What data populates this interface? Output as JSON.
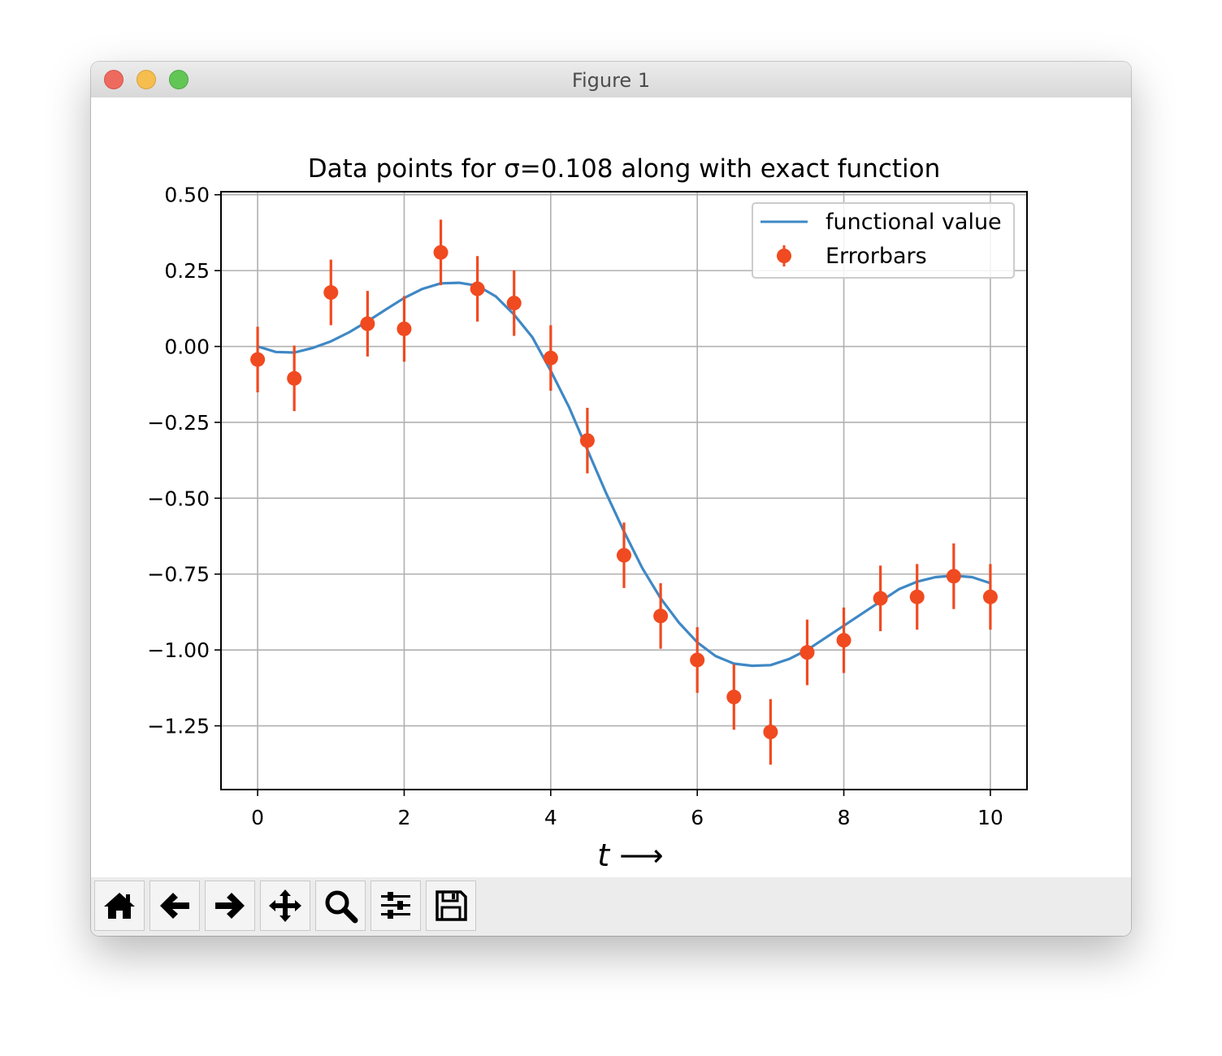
{
  "window": {
    "title": "Figure 1"
  },
  "toolbar": {
    "buttons": [
      {
        "name": "home-button",
        "icon": "home-icon"
      },
      {
        "name": "back-button",
        "icon": "arrow-left-icon"
      },
      {
        "name": "forward-button",
        "icon": "arrow-right-icon"
      },
      {
        "name": "pan-button",
        "icon": "move-icon"
      },
      {
        "name": "zoom-button",
        "icon": "magnifier-icon"
      },
      {
        "name": "subplots-button",
        "icon": "sliders-icon"
      },
      {
        "name": "save-button",
        "icon": "floppy-disk-icon"
      }
    ]
  },
  "colors": {
    "line": "#3f88c5",
    "points": "#f04a20",
    "grid": "#b0b0b0"
  },
  "chart_data": {
    "type": "line",
    "title": "Data points for σ=0.108 along with exact function",
    "xlabel": "t ⟶",
    "ylabel": "",
    "xlim": [
      -0.5,
      10.5
    ],
    "ylim": [
      -1.46,
      0.51
    ],
    "xticks": [
      0,
      2,
      4,
      6,
      8,
      10
    ],
    "yticks": [
      0.5,
      0.25,
      0.0,
      -0.25,
      -0.5,
      -0.75,
      -1.0,
      -1.25
    ],
    "ytick_labels": [
      "0.50",
      "0.25",
      "0.00",
      "−0.25",
      "−0.50",
      "−0.75",
      "−1.00",
      "−1.25"
    ],
    "grid": true,
    "legend_position": "top-right",
    "series": [
      {
        "name": "functional value",
        "type": "line",
        "x": [
          0,
          0.25,
          0.5,
          0.75,
          1.0,
          1.25,
          1.5,
          1.75,
          2.0,
          2.25,
          2.5,
          2.75,
          3.0,
          3.25,
          3.5,
          3.75,
          4.0,
          4.25,
          4.5,
          4.75,
          5.0,
          5.25,
          5.5,
          5.75,
          6.0,
          6.25,
          6.5,
          6.75,
          7.0,
          7.25,
          7.5,
          7.75,
          8.0,
          8.25,
          8.5,
          8.75,
          9.0,
          9.25,
          9.5,
          9.75,
          10.0
        ],
        "y": [
          0.0,
          -0.018,
          -0.02,
          -0.005,
          0.017,
          0.047,
          0.083,
          0.122,
          0.16,
          0.19,
          0.208,
          0.21,
          0.2,
          0.165,
          0.105,
          0.03,
          -0.08,
          -0.2,
          -0.34,
          -0.48,
          -0.61,
          -0.73,
          -0.83,
          -0.91,
          -0.975,
          -1.02,
          -1.045,
          -1.052,
          -1.05,
          -1.03,
          -1.0,
          -0.96,
          -0.92,
          -0.88,
          -0.84,
          -0.8,
          -0.775,
          -0.76,
          -0.755,
          -0.76,
          -0.78
        ]
      },
      {
        "name": "Errorbars",
        "type": "errorbar",
        "x": [
          0,
          0.5,
          1.0,
          1.5,
          2.0,
          2.5,
          3.0,
          3.5,
          4.0,
          4.5,
          5.0,
          5.5,
          6.0,
          6.5,
          7.0,
          7.5,
          8.0,
          8.5,
          9.0,
          9.5,
          10.0
        ],
        "y": [
          -0.043,
          -0.105,
          0.178,
          0.075,
          0.058,
          0.31,
          0.19,
          0.143,
          -0.038,
          -0.31,
          -0.688,
          -0.888,
          -1.033,
          -1.155,
          -1.27,
          -1.008,
          -0.968,
          -0.83,
          -0.825,
          -0.757,
          -0.825
        ],
        "yerr": 0.108
      }
    ]
  }
}
